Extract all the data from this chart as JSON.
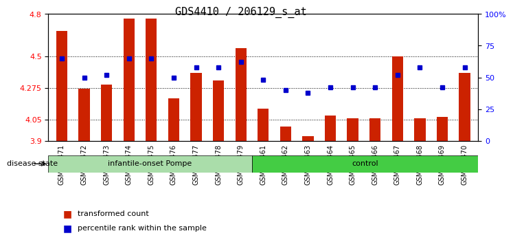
{
  "title": "GDS4410 / 206129_s_at",
  "samples": [
    "GSM947471",
    "GSM947472",
    "GSM947473",
    "GSM947474",
    "GSM947475",
    "GSM947476",
    "GSM947477",
    "GSM947478",
    "GSM947479",
    "GSM947461",
    "GSM947462",
    "GSM947463",
    "GSM947464",
    "GSM947465",
    "GSM947466",
    "GSM947467",
    "GSM947468",
    "GSM947469",
    "GSM947470"
  ],
  "transformed_count": [
    4.68,
    4.27,
    4.3,
    4.77,
    4.77,
    4.2,
    4.38,
    4.33,
    4.56,
    4.13,
    4.0,
    3.93,
    4.08,
    4.06,
    4.06,
    4.5,
    4.06,
    4.07,
    4.38
  ],
  "percentile_rank": [
    65,
    50,
    52,
    65,
    65,
    50,
    58,
    58,
    62,
    48,
    40,
    38,
    42,
    42,
    42,
    52,
    58,
    42,
    58
  ],
  "group_labels": [
    "infantile-onset Pompe",
    "control"
  ],
  "group_counts": [
    9,
    10
  ],
  "y_min": 3.9,
  "y_max": 4.8,
  "y_ticks": [
    3.9,
    4.05,
    4.275,
    4.5,
    4.8
  ],
  "y_right_ticks": [
    0,
    25,
    50,
    75,
    100
  ],
  "bar_color": "#cc2200",
  "dot_color": "#0000cc",
  "bar_bottom": 3.9,
  "group1_color": "#aaddaa",
  "group2_color": "#44cc44",
  "tick_label_fontsize": 7,
  "legend_label_bar": "transformed count",
  "legend_label_dot": "percentile rank within the sample"
}
